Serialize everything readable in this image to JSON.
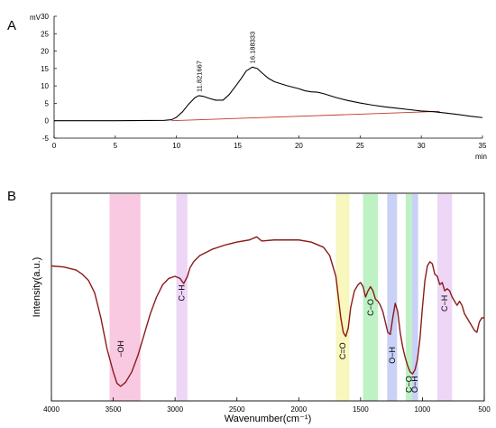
{
  "chart_data": [
    {
      "type": "line",
      "panel_label": "A",
      "ylabel": "mV",
      "xlabel": "min",
      "xlim": [
        0,
        35
      ],
      "ylim": [
        -5,
        30
      ],
      "x_ticks": [
        0,
        5,
        10,
        15,
        20,
        25,
        30,
        35
      ],
      "y_ticks": [
        -5,
        0,
        5,
        10,
        15,
        20,
        25,
        30
      ],
      "grid": false,
      "series": [
        {
          "color": "#000000",
          "x": [
            0,
            5,
            9,
            9.6,
            10,
            10.5,
            11,
            11.5,
            11.82,
            12.2,
            12.7,
            13.2,
            13.8,
            14.3,
            14.8,
            15.3,
            15.7,
            16.19,
            16.6,
            17,
            17.5,
            18,
            19,
            20,
            20.5,
            21,
            21.5,
            22,
            23,
            24,
            25,
            26,
            27,
            28,
            29,
            30,
            31,
            32,
            33,
            34,
            35
          ],
          "y": [
            0,
            0,
            0.1,
            0.3,
            1,
            2.6,
            4.8,
            6.6,
            7.2,
            7,
            6.4,
            5.9,
            5.9,
            7.5,
            9.8,
            12.2,
            14.3,
            15.4,
            15,
            13.7,
            12.2,
            11.2,
            10.1,
            9.2,
            8.6,
            8.3,
            8.2,
            7.8,
            6.7,
            5.8,
            5.1,
            4.5,
            4,
            3.6,
            3.2,
            2.8,
            2.6,
            2.2,
            1.8,
            1.3,
            0.9
          ]
        },
        {
          "color": "#c0392b",
          "x": [
            9.6,
            31.5
          ],
          "y": [
            0,
            2.7
          ]
        }
      ],
      "annotations": [
        {
          "text": "11.821667",
          "x": 11.82,
          "y": 7.2
        },
        {
          "text": "16.188333",
          "x": 16.19,
          "y": 15.4
        }
      ]
    },
    {
      "type": "line",
      "panel_label": "B",
      "ylabel": "Intensity(a.u.)",
      "xlabel": "Wavenumber(cm⁻¹)",
      "xlim": [
        4000,
        500
      ],
      "x_ticks": [
        4000,
        3500,
        3000,
        2500,
        2000,
        1500,
        1000,
        500
      ],
      "grid": false,
      "series": [
        {
          "color": "#8b1a1a",
          "x": [
            4000,
            3900,
            3800,
            3750,
            3700,
            3650,
            3600,
            3550,
            3500,
            3470,
            3440,
            3400,
            3350,
            3300,
            3250,
            3200,
            3150,
            3100,
            3050,
            3000,
            2960,
            2930,
            2900,
            2880,
            2850,
            2800,
            2700,
            2600,
            2500,
            2400,
            2340,
            2300,
            2200,
            2100,
            2000,
            1900,
            1800,
            1750,
            1700,
            1680,
            1660,
            1640,
            1620,
            1600,
            1580,
            1550,
            1520,
            1500,
            1480,
            1460,
            1440,
            1420,
            1400,
            1380,
            1360,
            1340,
            1320,
            1300,
            1280,
            1260,
            1240,
            1220,
            1200,
            1180,
            1160,
            1140,
            1120,
            1100,
            1080,
            1060,
            1040,
            1020,
            1000,
            980,
            960,
            940,
            920,
            900,
            880,
            860,
            840,
            820,
            800,
            780,
            760,
            740,
            720,
            700,
            680,
            660,
            640,
            620,
            600,
            580,
            560,
            540,
            520,
            500
          ],
          "y": [
            65,
            64.5,
            63,
            61,
            58,
            52,
            40,
            25,
            14,
            8.5,
            7,
            9,
            14,
            22,
            32,
            42,
            50,
            56,
            59,
            60,
            59,
            56.5,
            60,
            64,
            67,
            70,
            73,
            75,
            76.5,
            77.5,
            79,
            77,
            77.5,
            77.5,
            77.5,
            76.5,
            74,
            70,
            60,
            50,
            40,
            33,
            31,
            35,
            45,
            53,
            56,
            57,
            55,
            50,
            53,
            55,
            53,
            49,
            48,
            46,
            43,
            38,
            33,
            32,
            40,
            47,
            43,
            33,
            26,
            21,
            17,
            14,
            13,
            15,
            20,
            30,
            45,
            58,
            65,
            67,
            66,
            61,
            60,
            56,
            57,
            53,
            54,
            53,
            50,
            48,
            46,
            48,
            46,
            42,
            40,
            38,
            36,
            34,
            33,
            38,
            40,
            40
          ]
        }
      ],
      "bands": [
        {
          "label": "−OH",
          "x": [
            3530,
            3280
          ],
          "color": "#f7b7d8"
        },
        {
          "label": "C−H",
          "x": [
            2990,
            2900
          ],
          "color": "#e8c8f4"
        },
        {
          "label": "C=O",
          "x": [
            1700,
            1590
          ],
          "color": "#f4f4a8"
        },
        {
          "label": "C−O",
          "x": [
            1480,
            1360
          ],
          "color": "#a8ecb0"
        },
        {
          "label": "O−H",
          "x": [
            1285,
            1205
          ],
          "color": "#b8c2f4"
        },
        {
          "label": "C−O",
          "x": [
            1135,
            1085
          ],
          "color": "#a8ecb0"
        },
        {
          "label": "O−H",
          "x": [
            1085,
            1035
          ],
          "color": "#b8c2f4"
        },
        {
          "label": "C−H",
          "x": [
            880,
            760
          ],
          "color": "#e8c8f4"
        }
      ]
    }
  ]
}
